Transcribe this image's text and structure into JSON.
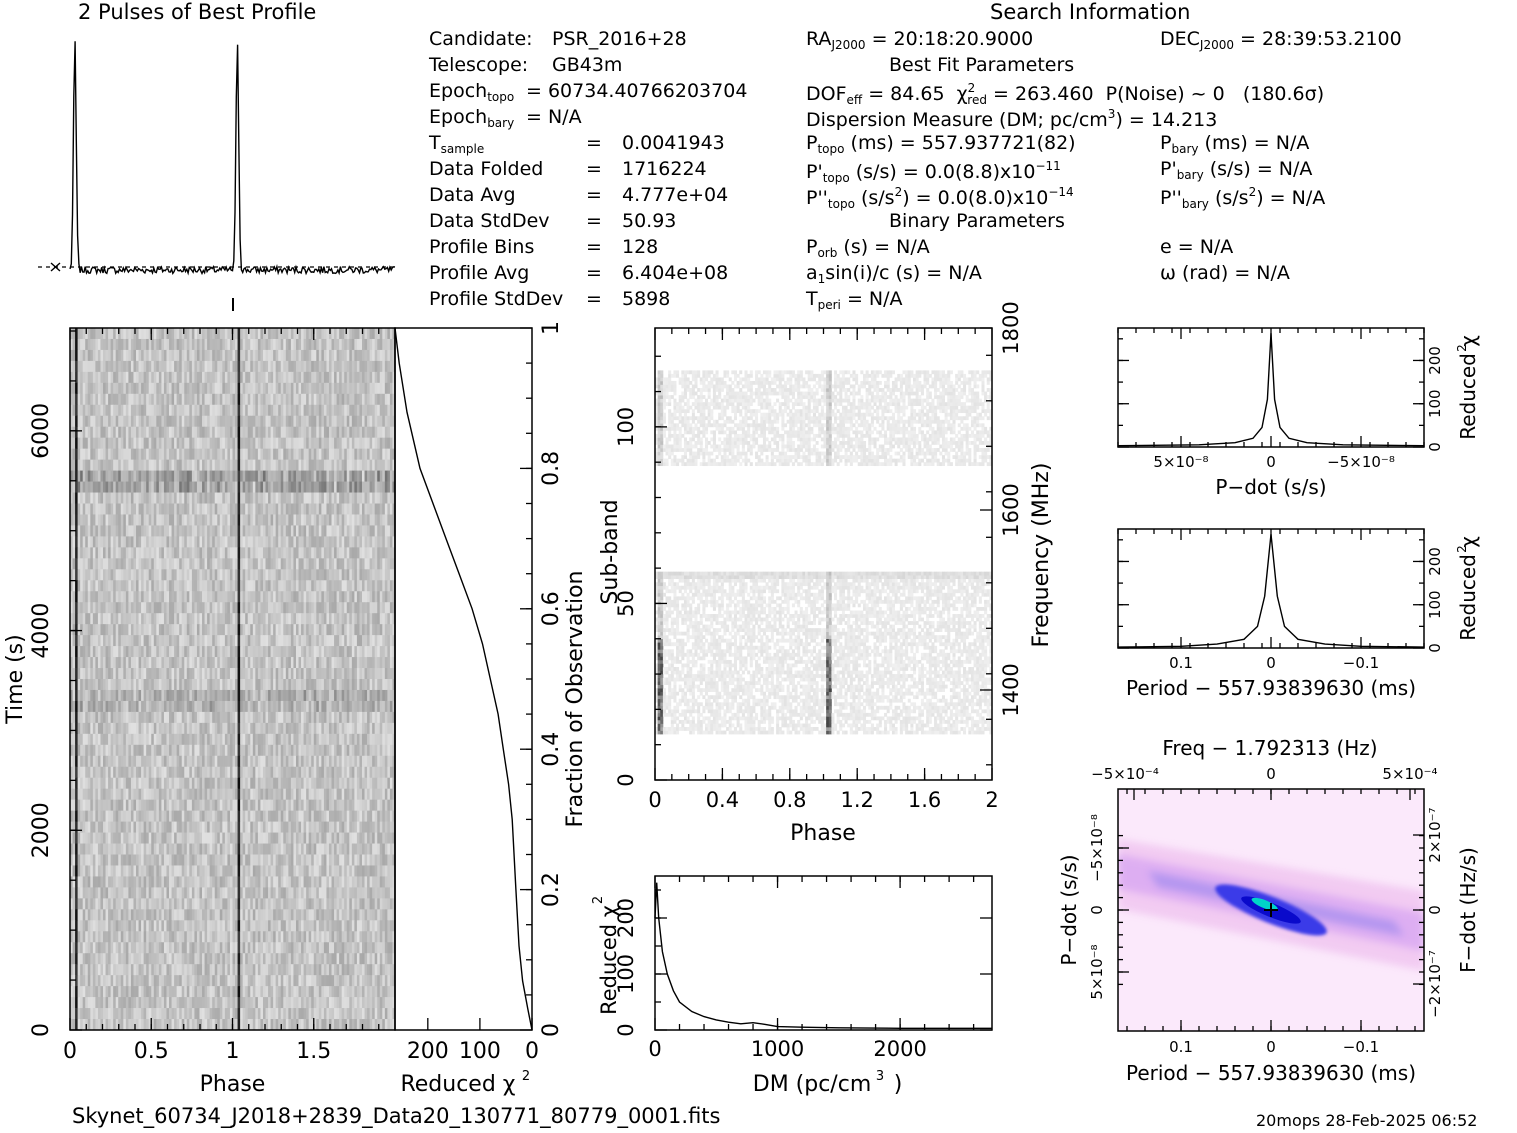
{
  "titles": {
    "profile": "2 Pulses of Best Profile",
    "search": "Search Information",
    "best_fit": "Best Fit Parameters",
    "binary": "Binary Parameters",
    "footer_file": "Skynet_60734_J2018+2839_Data20_130771_80779_0001.fits",
    "footer_stamp": "20mops 28-Feb-2025 06:52"
  },
  "info_left": [
    {
      "label": "Candidate:",
      "value": "PSR_2016+28"
    },
    {
      "label": "Telescope:",
      "value": "GB43m"
    },
    {
      "label": "Epoch",
      "sub": "topo",
      "value": "= 60734.40766203704"
    },
    {
      "label": "Epoch",
      "sub": "bary",
      "value": "= N/A"
    },
    {
      "label": "T",
      "sub": "sample",
      "eq": "=",
      "value": "0.0041943"
    },
    {
      "label": "Data Folded",
      "eq": "=",
      "value": "1716224"
    },
    {
      "label": "Data Avg",
      "eq": "=",
      "value": "4.777e+04"
    },
    {
      "label": "Data StdDev",
      "eq": "=",
      "value": "50.93"
    },
    {
      "label": "Profile Bins",
      "eq": "=",
      "value": "128"
    },
    {
      "label": "Profile Avg",
      "eq": "=",
      "value": "6.404e+08"
    },
    {
      "label": "Profile StdDev",
      "eq": "=",
      "value": "5898"
    }
  ],
  "info_mid": {
    "ra_label": "RA",
    "ra_sub": "J2000",
    "ra_value": "= 20:18:20.9000",
    "dec_label": "DEC",
    "dec_sub": "J2000",
    "dec_value": "= 28:39:53.2100",
    "dof_label": "DOF",
    "dof_sub": "eff",
    "dof_value": "= 84.65",
    "chi_label": "χ",
    "chi_sup": "2",
    "chi_sub": "red",
    "chi_value": "= 263.460",
    "pnoise": "P(Noise) ~ 0",
    "sigma": "(180.6σ)",
    "dm_text": "Dispersion Measure (DM; pc/cm",
    "dm_sup": "3",
    "dm_value": ") = 14.213",
    "ptopo_label": "P",
    "ptopo_sub": "topo",
    "ptopo_value": "(ms) =  557.937721(82)",
    "pdtopo_label": "P'",
    "pdtopo_sub": "topo",
    "pdtopo_value": "(s/s) = 0.0(8.8)x10",
    "pdtopo_exp": "−11",
    "pddtopo_label": "P''",
    "pddtopo_sub": "topo",
    "pddtopo_value": "(s/s",
    "pddtopo_sup": "2",
    "pddtopo_value2": ") = 0.0(8.0)x10",
    "pddtopo_exp": "−14",
    "porb_label": "P",
    "porb_sub": "orb",
    "porb_value": "(s) = N/A",
    "asini": "a",
    "asini_sub": "1",
    "asini_value": "sin(i)/c (s) = N/A",
    "tperi_label": "T",
    "tperi_sub": "peri",
    "tperi_value": "= N/A"
  },
  "info_right": {
    "pbary_label": "P",
    "pbary_sub": "bary",
    "pbary_value": "(ms) = N/A",
    "pdbary_label": "P'",
    "pdbary_sub": "bary",
    "pdbary_value": "(s/s) = N/A",
    "pddbary_label": "P''",
    "pddbary_sub": "bary",
    "pddbary_value": "(s/s",
    "pddbary_sup": "2",
    "pddbary_value2": ") = N/A",
    "ecc": "e = N/A",
    "omega": "ω (rad) = N/A"
  },
  "chart_data": [
    {
      "type": "line",
      "panel": "pulse-profile",
      "title": "2 Pulses of Best Profile",
      "x_phase": [
        0,
        2
      ],
      "peaks_at_phase": [
        0.03,
        1.03
      ]
    },
    {
      "type": "heatmap",
      "panel": "time-phase",
      "xlabel": "Phase",
      "ylabel": "Time (s)",
      "xlim": [
        0,
        2
      ],
      "ylim": [
        0,
        7030
      ],
      "xticks": [
        "0",
        "0.5",
        "1",
        "1.5"
      ],
      "yticks": [
        "0",
        "2000",
        "4000",
        "6000"
      ]
    },
    {
      "type": "line",
      "panel": "reduced-chi2-vs-fraction",
      "xlabel": "Reduced χ2",
      "ylabel": "Fraction of Observation",
      "xlim": [
        263,
        0
      ],
      "ylim": [
        0,
        1
      ],
      "xticks": [
        "200",
        "100",
        "0"
      ],
      "yticks": [
        "0",
        "0.2",
        "0.4",
        "0.6",
        "0.8",
        "1"
      ],
      "x": [
        0,
        8,
        18,
        25,
        31,
        38,
        45,
        55,
        65,
        80,
        95,
        115,
        140,
        165,
        190,
        215,
        240,
        255,
        263
      ],
      "y": [
        0,
        0.03,
        0.07,
        0.12,
        0.2,
        0.3,
        0.35,
        0.4,
        0.45,
        0.5,
        0.55,
        0.6,
        0.65,
        0.7,
        0.75,
        0.8,
        0.88,
        0.95,
        1.0
      ]
    },
    {
      "type": "heatmap",
      "panel": "subband-phase",
      "xlabel": "Phase",
      "ylabel": "Sub-band",
      "y2label": "Frequency (MHz)",
      "xlim": [
        0,
        2
      ],
      "ylim": [
        0,
        128
      ],
      "xticks": [
        "0",
        "0.4",
        "0.8",
        "1.2",
        "1.6",
        "2"
      ],
      "yticks": [
        "0",
        "50",
        "100"
      ],
      "y2ticks": [
        "1400",
        "1600",
        "1800"
      ]
    },
    {
      "type": "line",
      "panel": "dm-chi2",
      "xlabel": "DM (pc/cm3)",
      "ylabel": "Reduced χ2",
      "xlim": [
        0,
        2750
      ],
      "ylim": [
        0,
        275
      ],
      "xticks": [
        "0",
        "1000",
        "2000"
      ],
      "yticks": [
        "0",
        "100",
        "200"
      ],
      "x": [
        0,
        14,
        30,
        60,
        100,
        150,
        200,
        300,
        400,
        500,
        600,
        700,
        800,
        900,
        1000,
        1200,
        1500,
        2000,
        2500,
        2750
      ],
      "y": [
        200,
        263,
        200,
        140,
        100,
        70,
        50,
        33,
        24,
        18,
        14,
        11,
        13,
        10,
        6,
        5,
        4,
        3,
        3,
        3
      ]
    },
    {
      "type": "line",
      "panel": "pdot-chi2",
      "xlabel": "P−dot (s/s)",
      "ylabel": "Reduced χ2",
      "xlim": [
        8.5e-08,
        -8.5e-08
      ],
      "ylim": [
        0,
        275
      ],
      "xticks": [
        "5×10⁻⁸",
        "0",
        "−5×10⁻⁸"
      ],
      "yticks": [
        "0",
        "100",
        "200"
      ],
      "x": [
        8.5e-08,
        4e-08,
        2e-08,
        1e-08,
        5e-09,
        2e-09,
        0,
        -2e-09,
        -5e-09,
        -1e-08,
        -2e-08,
        -4e-08,
        -8.5e-08
      ],
      "y": [
        3,
        5,
        10,
        20,
        45,
        110,
        263,
        110,
        45,
        20,
        10,
        5,
        3
      ]
    },
    {
      "type": "line",
      "panel": "period-chi2",
      "xlabel": "Period − 557.93839630 (ms)",
      "ylabel": "Reduced χ2",
      "xlim": [
        0.17,
        -0.17
      ],
      "ylim": [
        0,
        275
      ],
      "xticks": [
        "0.1",
        "0",
        "−0.1"
      ],
      "yticks": [
        "0",
        "100",
        "200"
      ],
      "x": [
        0.17,
        0.1,
        0.06,
        0.03,
        0.015,
        0.007,
        0,
        -0.007,
        -0.015,
        -0.03,
        -0.06,
        -0.1,
        -0.17
      ],
      "y": [
        2,
        4,
        9,
        20,
        50,
        120,
        263,
        120,
        50,
        20,
        9,
        4,
        2
      ]
    },
    {
      "type": "heatmap",
      "panel": "period-pdot",
      "title": "Freq − 1.792313 (Hz)",
      "xlabel": "Period − 557.93839630 (ms)",
      "ylabel": "P−dot (s/s)",
      "y2label": "F−dot (Hz/s)",
      "xticks": [
        "0.1",
        "0",
        "−0.1"
      ],
      "x2ticks": [
        "−5×10⁻⁴",
        "0",
        "5×10⁻⁴"
      ],
      "yticks": [
        "5×10⁻⁸",
        "0",
        "−5×10⁻⁸"
      ],
      "y2ticks": [
        "−2×10⁻⁷",
        "0",
        "2×10⁻⁷"
      ]
    }
  ]
}
